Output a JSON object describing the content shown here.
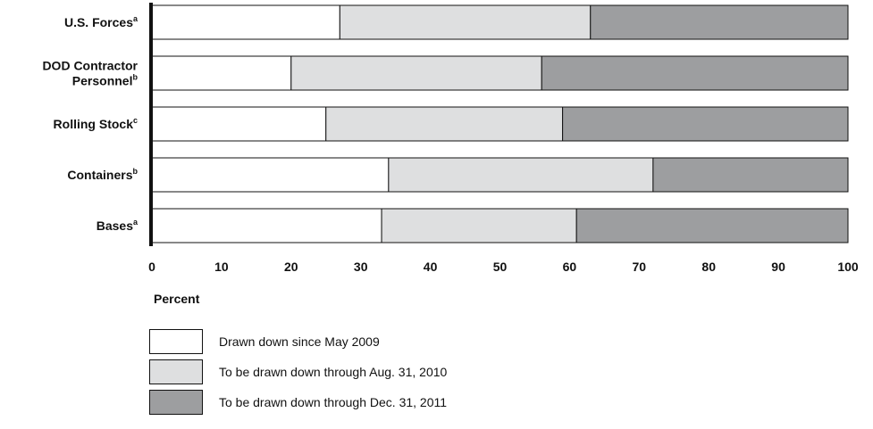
{
  "chart_data": {
    "type": "bar",
    "orientation": "horizontal",
    "stacked": true,
    "categories": [
      {
        "name": "U.S. Forces",
        "sup": "a"
      },
      {
        "name": "DOD Contractor Personnel",
        "lines": [
          "DOD Contractor",
          "Personnel"
        ],
        "sup": "b"
      },
      {
        "name": "Rolling Stock",
        "sup": "c"
      },
      {
        "name": "Containers",
        "sup": "b"
      },
      {
        "name": "Bases",
        "sup": "a"
      }
    ],
    "series": [
      {
        "name": "Drawn down since May 2009",
        "color": "#ffffff",
        "values": [
          27,
          20,
          25,
          34,
          33
        ]
      },
      {
        "name": "To be drawn down through Aug. 31, 2010",
        "color": "#dedfe0",
        "values": [
          36,
          36,
          34,
          38,
          28
        ]
      },
      {
        "name": "To be drawn down through Dec. 31, 2011",
        "color": "#9d9ea0",
        "values": [
          37,
          44,
          41,
          28,
          39
        ]
      }
    ],
    "xlabel": "Percent",
    "xlim": [
      0,
      100
    ],
    "xticks": [
      0,
      10,
      20,
      30,
      40,
      50,
      60,
      70,
      80,
      90,
      100
    ],
    "grid": false,
    "legend_position": "bottom-left"
  }
}
